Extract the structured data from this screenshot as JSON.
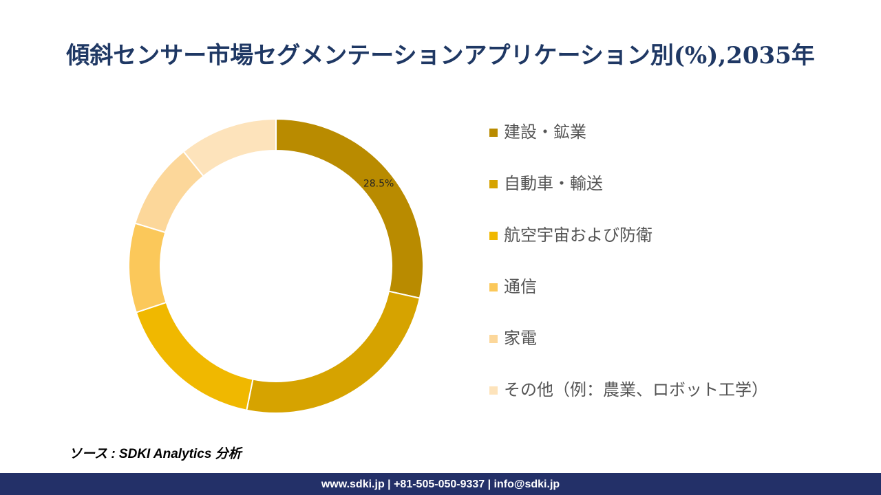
{
  "chart_data": {
    "type": "donut",
    "title": "傾斜センサー市場セグメンテーションアプリケーション別(%),2035年",
    "categories": [
      "建設・鉱業",
      "自動車・輸送",
      "航空宇宙および防衛",
      "通信",
      "家電",
      "その他（例：農業、ロボット工学）"
    ],
    "values": [
      28.5,
      24.7,
      16.7,
      9.8,
      9.5,
      10.8
    ],
    "value_labels": [
      "28.5%",
      null,
      null,
      null,
      null,
      null
    ],
    "colors": [
      "#b98b00",
      "#d6a300",
      "#f0b800",
      "#fbc85a",
      "#fcd79a",
      "#fde3bb"
    ]
  },
  "source": "ソース : SDKI Analytics 分析",
  "footer": "www.sdki.jp | +81-505-050-9337 | info@sdki.jp"
}
